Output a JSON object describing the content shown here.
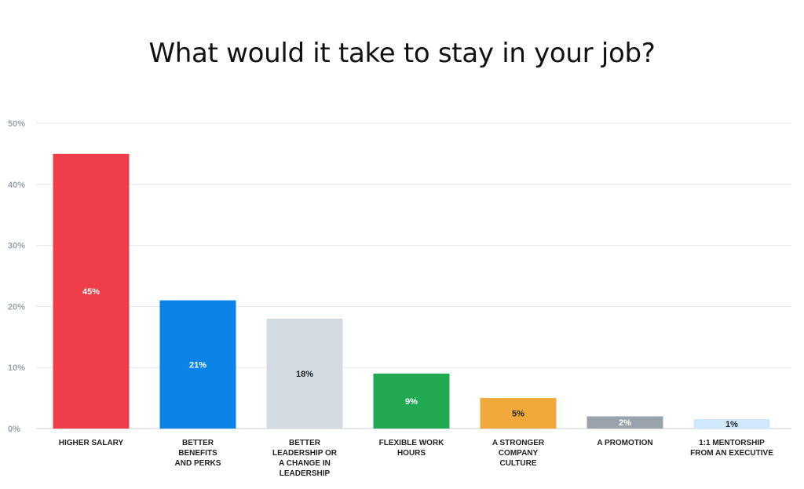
{
  "chart_data": {
    "type": "bar",
    "title": "What would it take to stay in your job?",
    "xlabel": "",
    "ylabel": "",
    "ylim": [
      0,
      50
    ],
    "yticks": [
      "0%",
      "10%",
      "20%",
      "30%",
      "40%",
      "50%"
    ],
    "grid": true,
    "categories": [
      [
        "HIGHER SALARY"
      ],
      [
        "BETTER",
        "BENEFITS",
        "AND PERKS"
      ],
      [
        "BETTER",
        "LEADERSHIP OR",
        "A CHANGE IN",
        "LEADERSHIP"
      ],
      [
        "FLEXIBLE WORK",
        "HOURS"
      ],
      [
        "A STRONGER",
        "COMPANY",
        "CULTURE"
      ],
      [
        "A PROMOTION"
      ],
      [
        "1:1 MENTORSHIP",
        "FROM AN EXECUTIVE"
      ]
    ],
    "values": [
      45,
      21,
      18,
      9,
      5,
      2,
      1
    ],
    "data_labels": [
      "45%",
      "21%",
      "18%",
      "9%",
      "5%",
      "2%",
      "1%"
    ],
    "colors": [
      "#ef3e4a",
      "#0a84e8",
      "#d3dbe2",
      "#22a952",
      "#f2a93b",
      "#9aa3ab",
      "#cfe9fb"
    ],
    "label_colors": [
      "#ffffff",
      "#ffffff",
      "#222222",
      "#ffffff",
      "#222222",
      "#ffffff",
      "#222222"
    ]
  }
}
